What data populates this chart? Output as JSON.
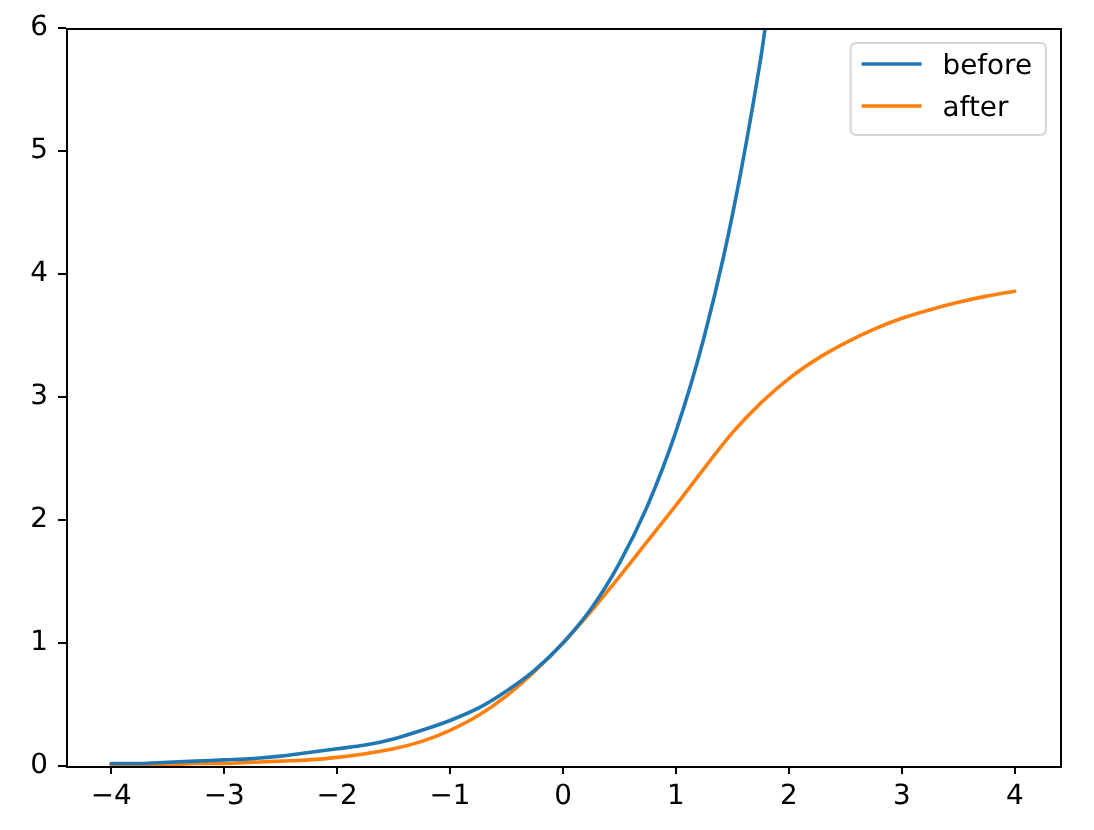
{
  "chart_data": {
    "type": "line",
    "xlim": [
      -4.4,
      4.4
    ],
    "ylim": [
      0,
      6
    ],
    "xticks": [
      {
        "value": -4,
        "label": "−4"
      },
      {
        "value": -3,
        "label": "−3"
      },
      {
        "value": -2,
        "label": "−2"
      },
      {
        "value": -1,
        "label": "−1"
      },
      0,
      1,
      2,
      3,
      4
    ],
    "yticks": [
      0,
      1,
      2,
      3,
      4,
      5,
      6
    ],
    "legend": "top right",
    "series": [
      {
        "name": "before",
        "color": "#1f77b4",
        "x": [
          -4,
          -3.75,
          -3.5,
          -3.25,
          -3,
          -2.75,
          -2.5,
          -2.25,
          -2,
          -1.75,
          -1.5,
          -1.25,
          -1,
          -0.75,
          -0.5,
          -0.25,
          0,
          0.25,
          0.5,
          0.75,
          1,
          1.25,
          1.5,
          1.75,
          1.79
        ],
        "values": [
          0.02,
          0.02,
          0.03,
          0.04,
          0.05,
          0.06,
          0.08,
          0.11,
          0.14,
          0.17,
          0.22,
          0.29,
          0.37,
          0.47,
          0.61,
          0.78,
          1.0,
          1.28,
          1.65,
          2.12,
          2.72,
          3.49,
          4.48,
          5.75,
          6.0
        ]
      },
      {
        "name": "after",
        "color": "#ff7f0e",
        "x": [
          -4,
          -3.75,
          -3.5,
          -3.25,
          -3,
          -2.75,
          -2.5,
          -2.25,
          -2,
          -1.75,
          -1.5,
          -1.25,
          -1,
          -0.75,
          -0.5,
          -0.25,
          0,
          0.25,
          0.5,
          0.75,
          1,
          1.25,
          1.5,
          1.75,
          2,
          2.25,
          2.5,
          2.75,
          3,
          3.25,
          3.5,
          3.75,
          4
        ],
        "values": [
          0.01,
          0.01,
          0.01,
          0.02,
          0.02,
          0.03,
          0.04,
          0.05,
          0.07,
          0.1,
          0.14,
          0.2,
          0.29,
          0.41,
          0.57,
          0.77,
          1.0,
          1.26,
          1.54,
          1.83,
          2.12,
          2.42,
          2.71,
          2.95,
          3.15,
          3.31,
          3.44,
          3.55,
          3.64,
          3.71,
          3.77,
          3.82,
          3.86
        ]
      }
    ]
  }
}
